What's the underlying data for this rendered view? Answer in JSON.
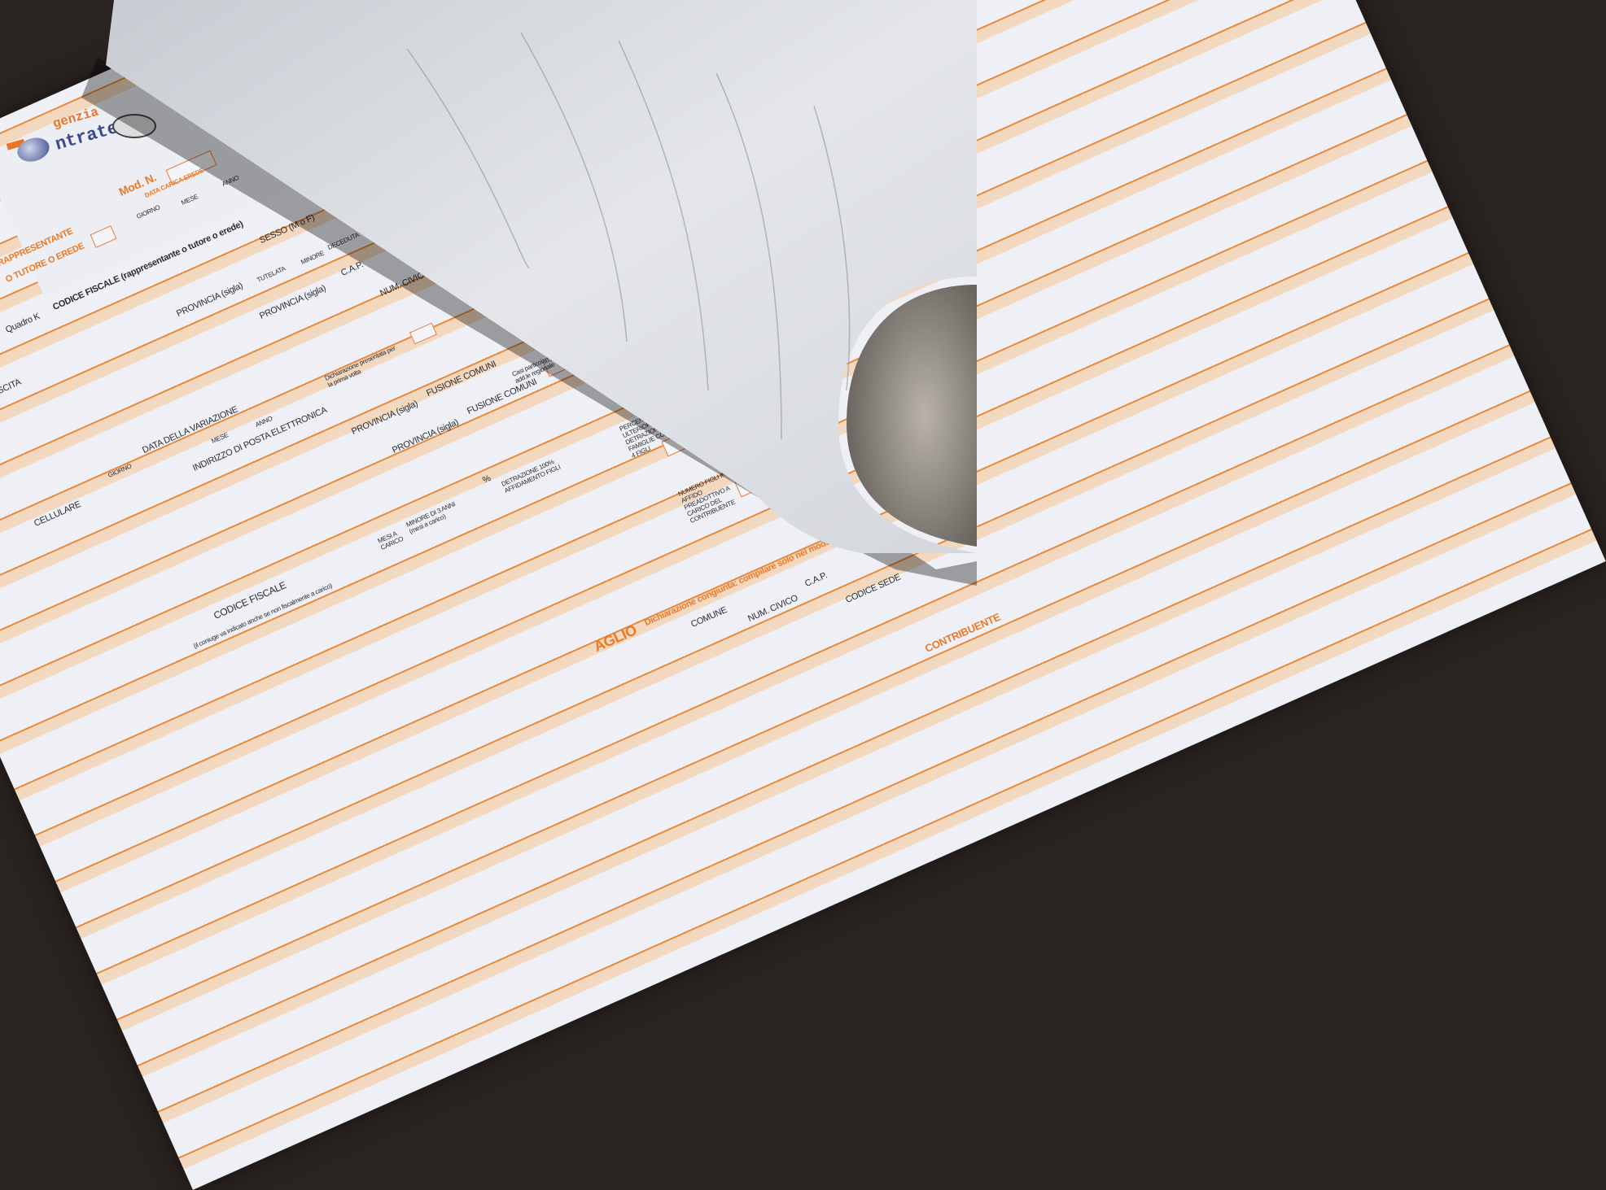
{
  "logo": {
    "line1": "genzia",
    "line2": "ntrate",
    "brand": "Agenzia Entrate"
  },
  "colors": {
    "accent_orange": "#e87a2a",
    "band_peach": "#f1d8bf",
    "paper": "#eef0f5",
    "logo_blue": "#3a4a8c"
  },
  "form": {
    "mod_n": "Mod. N.",
    "data_carica_erede": "DATA CARICA EREDE",
    "giorno": "GIORNO",
    "mese": "MESE",
    "anno": "ANNO",
    "rappresentante": "RAPPRESENTANTE",
    "tutore_erede": "O TUTORE O EREDE",
    "quadro_k": "Quadro K",
    "codice_fiscale_rapp": "CODICE FISCALE (rappresentante o tutore o erede)",
    "sesso": "SESSO (M o F)",
    "tutelata": "TUTELATA",
    "minore": "MINORE",
    "deceduta": "DECEDUTA",
    "cap": "C.A.P.",
    "provincia": "PROVINCIA (sigla)",
    "num_civico": "NUM. CIVICO",
    "nascita": "SCITA",
    "dich_prima_volta": "Dichiarazione presentata per la prima volta",
    "casi_particolari": "Casi particolari add.le regionale",
    "data_variazione": "DATA DELLA VARIAZIONE",
    "pec": "INDIRIZZO DI POSTA ELETTRONICA",
    "fusione_comuni": "FUSIONE COMUNI",
    "cellulare": "CELLULARE",
    "codice_fiscale": "CODICE FISCALE",
    "coniuge_note": "(il coniuge va indicato anche se non fiscalmente a carico)",
    "mesi_carico": "MESI A CARICO",
    "minore_3_anni": "MINORE DI 3 ANNI (mesi a carico)",
    "percent": "%",
    "detrazione_100": "DETRAZIONE 100% AFFIDAMENTO FIGLI",
    "percentuale_ulteriore": "PERCENTUALE ULTERIORE DETRAZIONE PER FAMIGLIE CON ALMENO 4 FIGLI",
    "numero_figli": "NUMERO FIGLI IN AFFIDO PREADOTTIVO A CARICO DEL CONTRIBUENTE",
    "aglio": "AGLIO",
    "dich_congiunta": "Dichiarazione congiunta: compilare solo nel modello del",
    "comune": "COMUNE",
    "codice_sede": "CODICE SEDE",
    "contribuente": "CONTRIBUENTE"
  }
}
